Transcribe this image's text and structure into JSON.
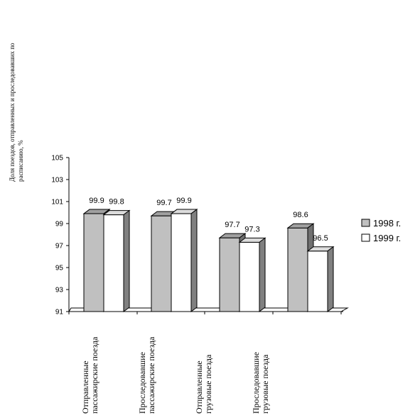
{
  "chart_data": {
    "type": "bar",
    "title": "",
    "ylabel": "Доля поездов, отправленных и проследовавших по расписанию, %",
    "xlabel": "",
    "ylim": [
      91,
      105
    ],
    "yticks": [
      91,
      93,
      95,
      97,
      99,
      101,
      103,
      105
    ],
    "categories": [
      [
        "Отправленные",
        "пассажирские поезда"
      ],
      [
        "Проследовавшие",
        "пассажирские поезда"
      ],
      [
        "Отправленные",
        "грузовые поезда"
      ],
      [
        "Проследовавшие",
        "грузовые поезда"
      ]
    ],
    "series": [
      {
        "name": "1998 г.",
        "values": [
          99.9,
          99.7,
          97.7,
          98.6
        ],
        "labels": [
          "99.9",
          "99.7",
          "97.7",
          "98.6"
        ],
        "color": "#c0c0c0"
      },
      {
        "name": "1999 г.",
        "values": [
          99.8,
          99.9,
          97.3,
          96.5
        ],
        "labels": [
          "99.8",
          "99.9",
          "97.3",
          "96.5"
        ],
        "color": "#ffffff"
      }
    ],
    "legend_position": "right",
    "grid": false,
    "style": "3d-columns"
  }
}
